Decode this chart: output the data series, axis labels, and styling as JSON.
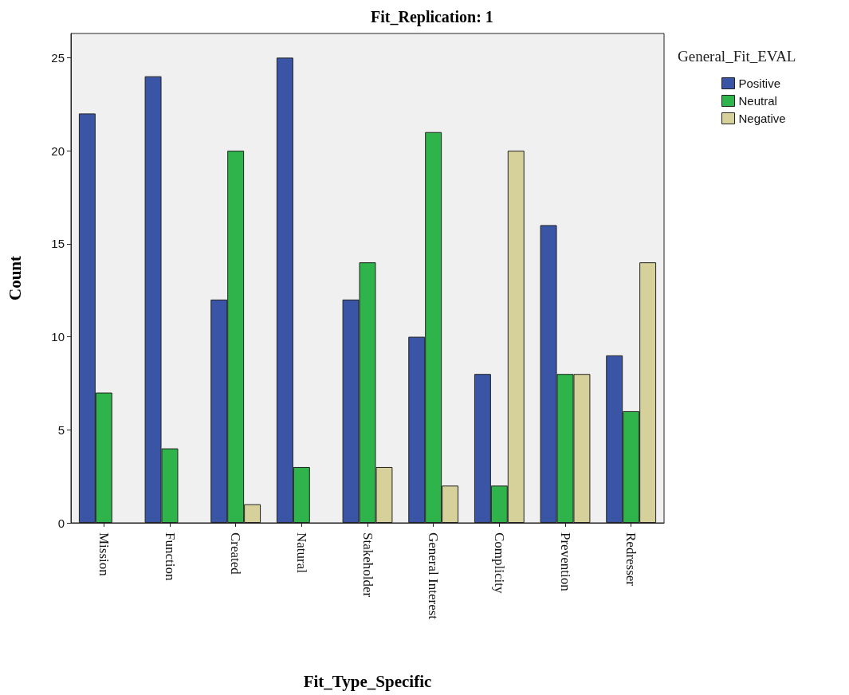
{
  "chart_data": {
    "type": "bar",
    "title": "Fit_Replication: 1",
    "xlabel": "Fit_Type_Specific",
    "ylabel": "Count",
    "legend_title": "General_Fit_EVAL",
    "categories": [
      "Mission",
      "Function",
      "Created",
      "Natural",
      "Stakeholder",
      "General Interest",
      "Complicity",
      "Prevention",
      "Redresser"
    ],
    "series": [
      {
        "name": "Positive",
        "color": "#3a55a5",
        "values": [
          22,
          24,
          12,
          25,
          12,
          10,
          8,
          16,
          9
        ]
      },
      {
        "name": "Neutral",
        "color": "#2eb44a",
        "values": [
          7,
          4,
          20,
          3,
          14,
          21,
          2,
          8,
          6
        ]
      },
      {
        "name": "Negative",
        "color": "#d6d09b",
        "values": [
          null,
          null,
          1,
          null,
          3,
          2,
          20,
          8,
          14
        ]
      }
    ],
    "ylim": [
      0,
      26.3
    ],
    "yticks": [
      0,
      5,
      10,
      15,
      20,
      25
    ],
    "grid": false,
    "legend": "top right"
  }
}
